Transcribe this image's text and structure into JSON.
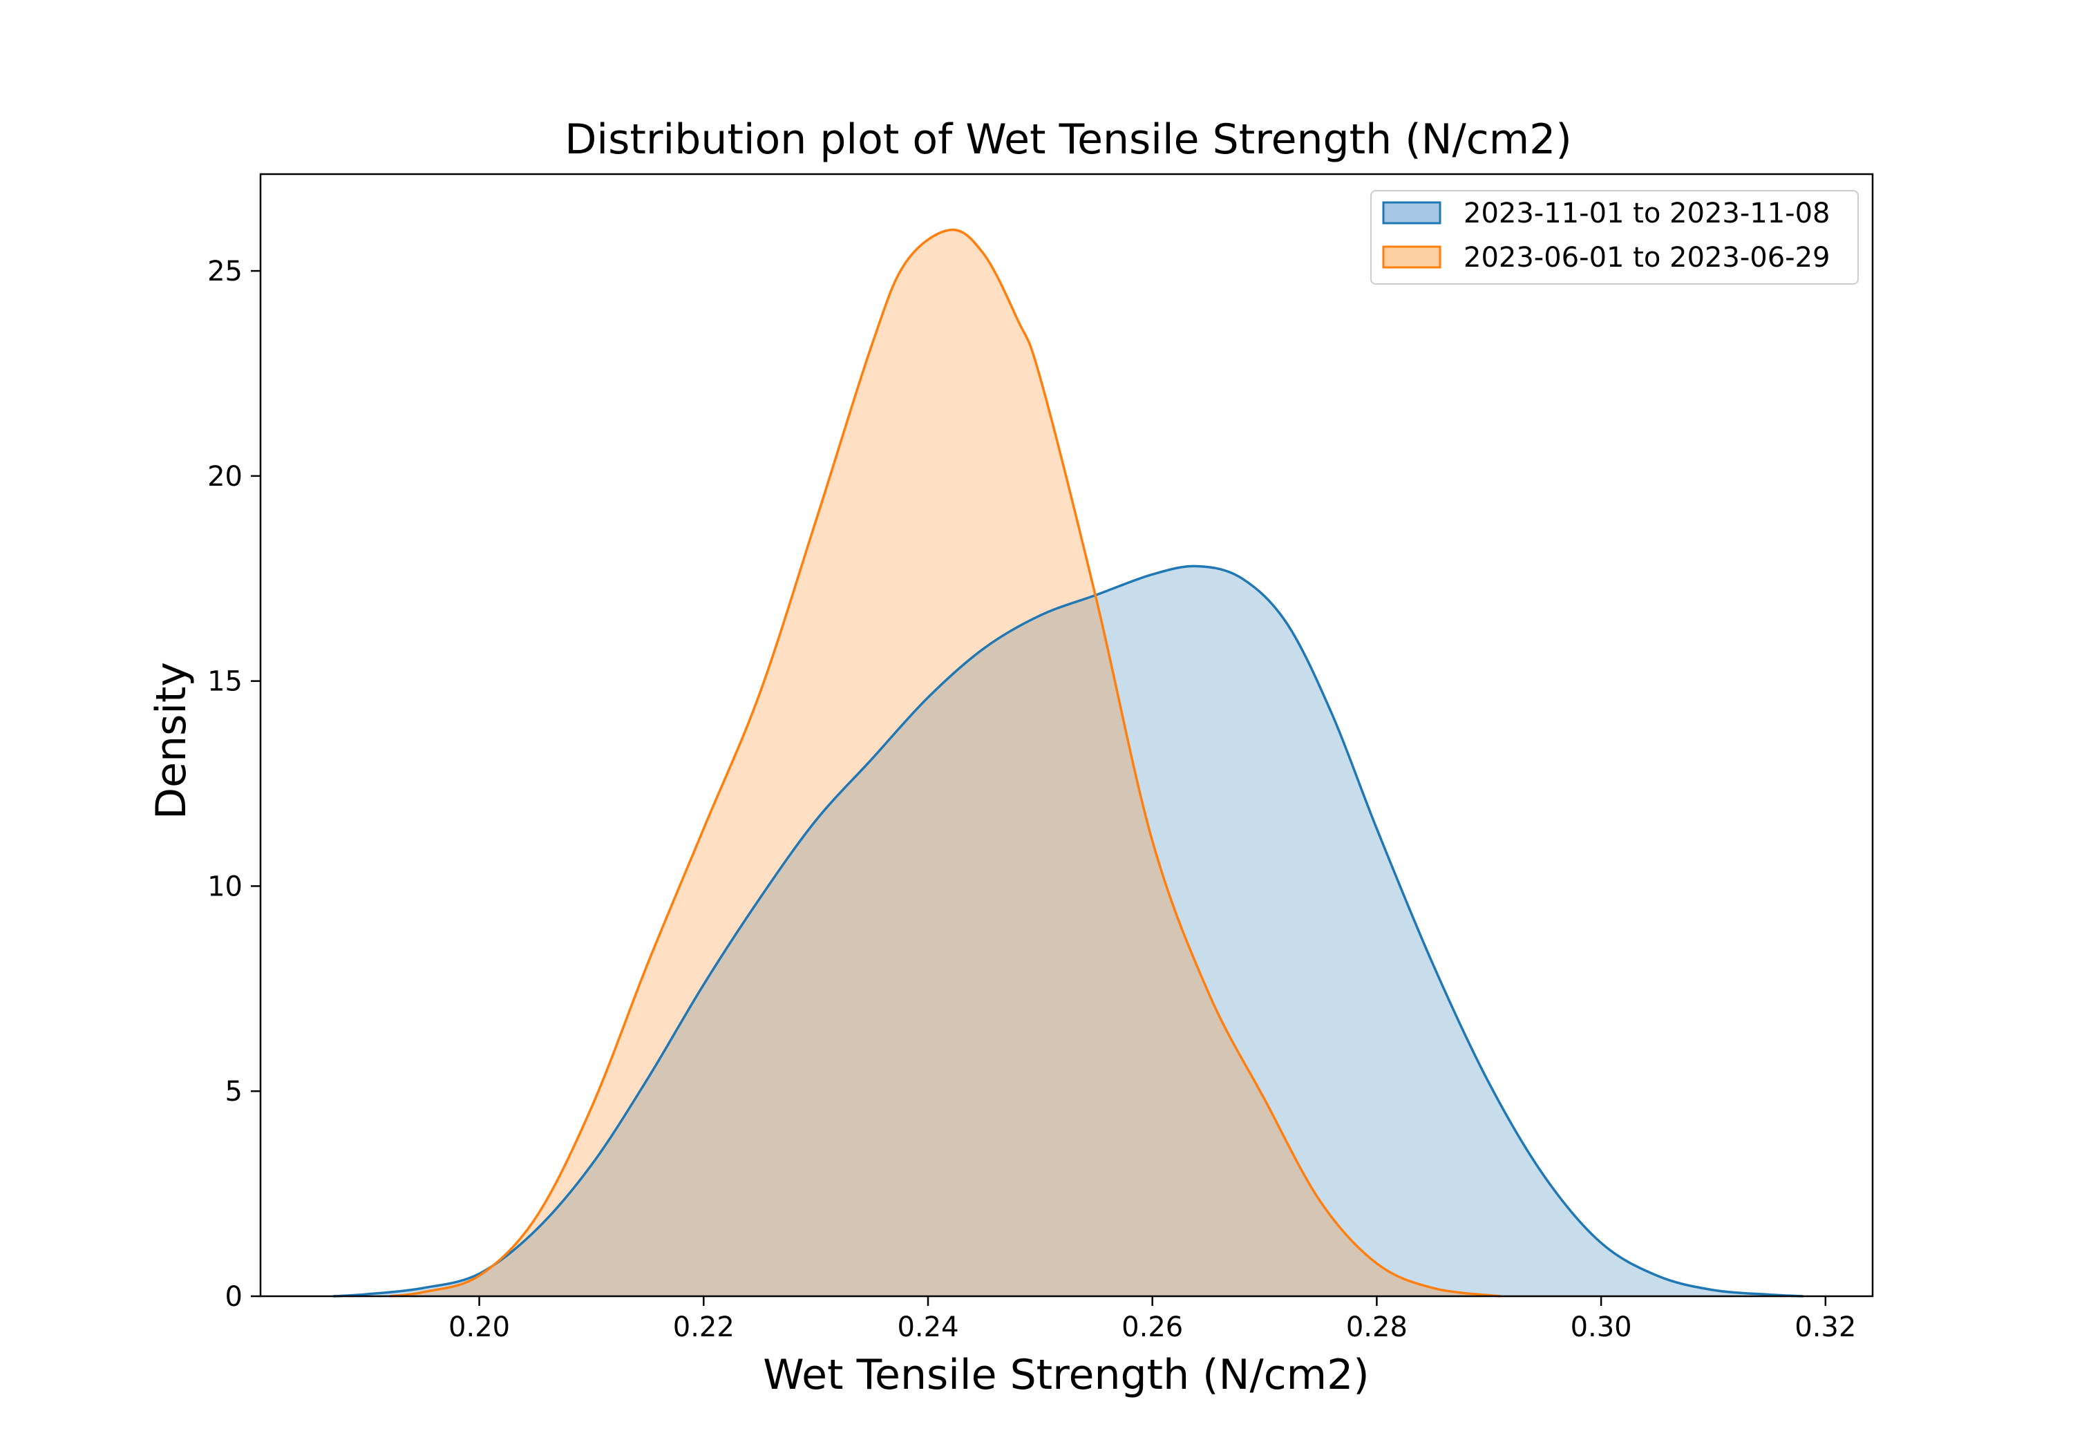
{
  "chart_data": {
    "type": "area",
    "title": "Distribution plot of Wet Tensile Strength (N/cm2)",
    "xlabel": "Wet Tensile Strength (N/cm2)",
    "ylabel": "Density",
    "xlim": [
      0.1805,
      0.3242
    ],
    "ylim": [
      0,
      27.36
    ],
    "x_ticks": [
      0.2,
      0.22,
      0.24,
      0.26,
      0.28,
      0.3,
      0.32
    ],
    "x_tick_labels": [
      "0.20",
      "0.22",
      "0.24",
      "0.26",
      "0.28",
      "0.30",
      "0.32"
    ],
    "y_ticks": [
      0,
      5,
      10,
      15,
      20,
      25
    ],
    "y_tick_labels": [
      "0",
      "5",
      "10",
      "15",
      "20",
      "25"
    ],
    "grid": false,
    "legend_position": "top-right",
    "series": [
      {
        "name": "2023-11-01 to 2023-11-08",
        "color": "#1f77b4",
        "fill_color": "#a8c7e5",
        "x": [
          0.187,
          0.19,
          0.195,
          0.2,
          0.205,
          0.21,
          0.215,
          0.22,
          0.225,
          0.23,
          0.235,
          0.24,
          0.245,
          0.25,
          0.255,
          0.26,
          0.264,
          0.268,
          0.272,
          0.276,
          0.28,
          0.285,
          0.29,
          0.295,
          0.3,
          0.305,
          0.31,
          0.315,
          0.318
        ],
        "y": [
          0.0,
          0.05,
          0.2,
          0.55,
          1.6,
          3.2,
          5.3,
          7.6,
          9.7,
          11.6,
          13.1,
          14.6,
          15.8,
          16.6,
          17.1,
          17.6,
          17.8,
          17.5,
          16.4,
          14.2,
          11.4,
          8.1,
          5.2,
          2.9,
          1.3,
          0.5,
          0.15,
          0.04,
          0.0
        ]
      },
      {
        "name": "2023-06-01 to 2023-06-29",
        "color": "#ff7f0e",
        "fill_color": "#fdcea2",
        "x": [
          0.192,
          0.195,
          0.2,
          0.205,
          0.21,
          0.215,
          0.22,
          0.225,
          0.23,
          0.235,
          0.238,
          0.242,
          0.245,
          0.248,
          0.25,
          0.255,
          0.26,
          0.265,
          0.27,
          0.275,
          0.28,
          0.285,
          0.291
        ],
        "y": [
          0.0,
          0.1,
          0.5,
          1.9,
          4.6,
          8.1,
          11.4,
          14.7,
          18.9,
          23.2,
          25.2,
          26.0,
          25.4,
          23.8,
          22.4,
          17.0,
          11.1,
          7.4,
          4.8,
          2.3,
          0.8,
          0.2,
          0.0
        ]
      }
    ]
  }
}
